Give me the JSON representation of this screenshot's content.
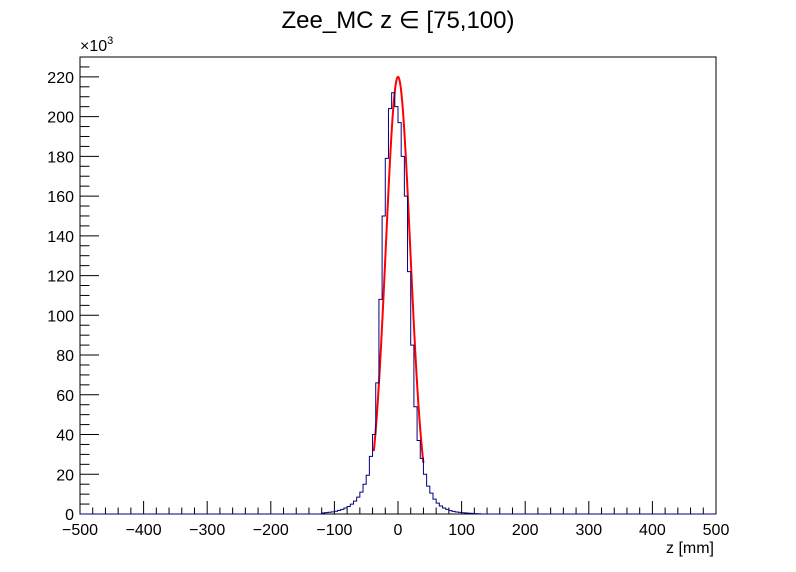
{
  "chart_data": {
    "type": "histogram",
    "title": "Zee_MC z  ∈ [75,100)",
    "xlabel": "z [mm]",
    "ylabel": "",
    "y_multiplier": "×10",
    "y_multiplier_exp": "3",
    "xlim": [
      -500,
      500
    ],
    "ylim": [
      0,
      230
    ],
    "x_ticks": [
      -500,
      -400,
      -300,
      -200,
      -100,
      0,
      100,
      200,
      300,
      400,
      500
    ],
    "x_tick_labels": [
      "−500",
      "−400",
      "−300",
      "−200",
      "−100",
      "0",
      "100",
      "200",
      "300",
      "400",
      "500"
    ],
    "y_ticks": [
      0,
      20,
      40,
      60,
      80,
      100,
      120,
      140,
      160,
      180,
      200,
      220
    ],
    "y_tick_labels": [
      "0",
      "20",
      "40",
      "60",
      "80",
      "100",
      "120",
      "140",
      "160",
      "180",
      "200",
      "220"
    ],
    "grid": false,
    "legend": "none",
    "series": [
      {
        "kind": "histogram",
        "color": "#000080",
        "bin_edges": [
          -120,
          -115,
          -110,
          -105,
          -100,
          -95,
          -90,
          -85,
          -80,
          -75,
          -70,
          -65,
          -60,
          -55,
          -50,
          -45,
          -40,
          -35,
          -30,
          -25,
          -20,
          -15,
          -10,
          -5,
          0,
          5,
          10,
          15,
          20,
          25,
          30,
          35,
          40,
          45,
          50,
          55,
          60,
          65,
          70,
          75,
          80,
          85,
          90,
          95,
          100,
          105,
          110,
          115,
          120,
          125,
          130
        ],
        "counts": [
          0.5,
          0.7,
          0.9,
          1.1,
          1.4,
          1.8,
          2.3,
          3.0,
          3.8,
          5.0,
          6.5,
          8.5,
          11,
          15,
          19.5,
          29,
          40,
          66,
          108,
          150,
          179,
          204,
          212,
          205,
          197,
          180,
          160,
          122,
          85,
          54,
          37,
          28,
          20,
          14,
          10.5,
          7.5,
          5.5,
          4,
          3,
          2.3,
          1.7,
          1.3,
          1,
          0.8,
          0.6,
          0.5,
          0.4,
          0.3,
          0.2,
          0.15
        ]
      },
      {
        "kind": "fit",
        "color": "#ff0000",
        "model": "gaussian",
        "mean": 0,
        "sigma": 19.3,
        "amplitude": 220,
        "range": [
          -38,
          40
        ]
      }
    ]
  }
}
